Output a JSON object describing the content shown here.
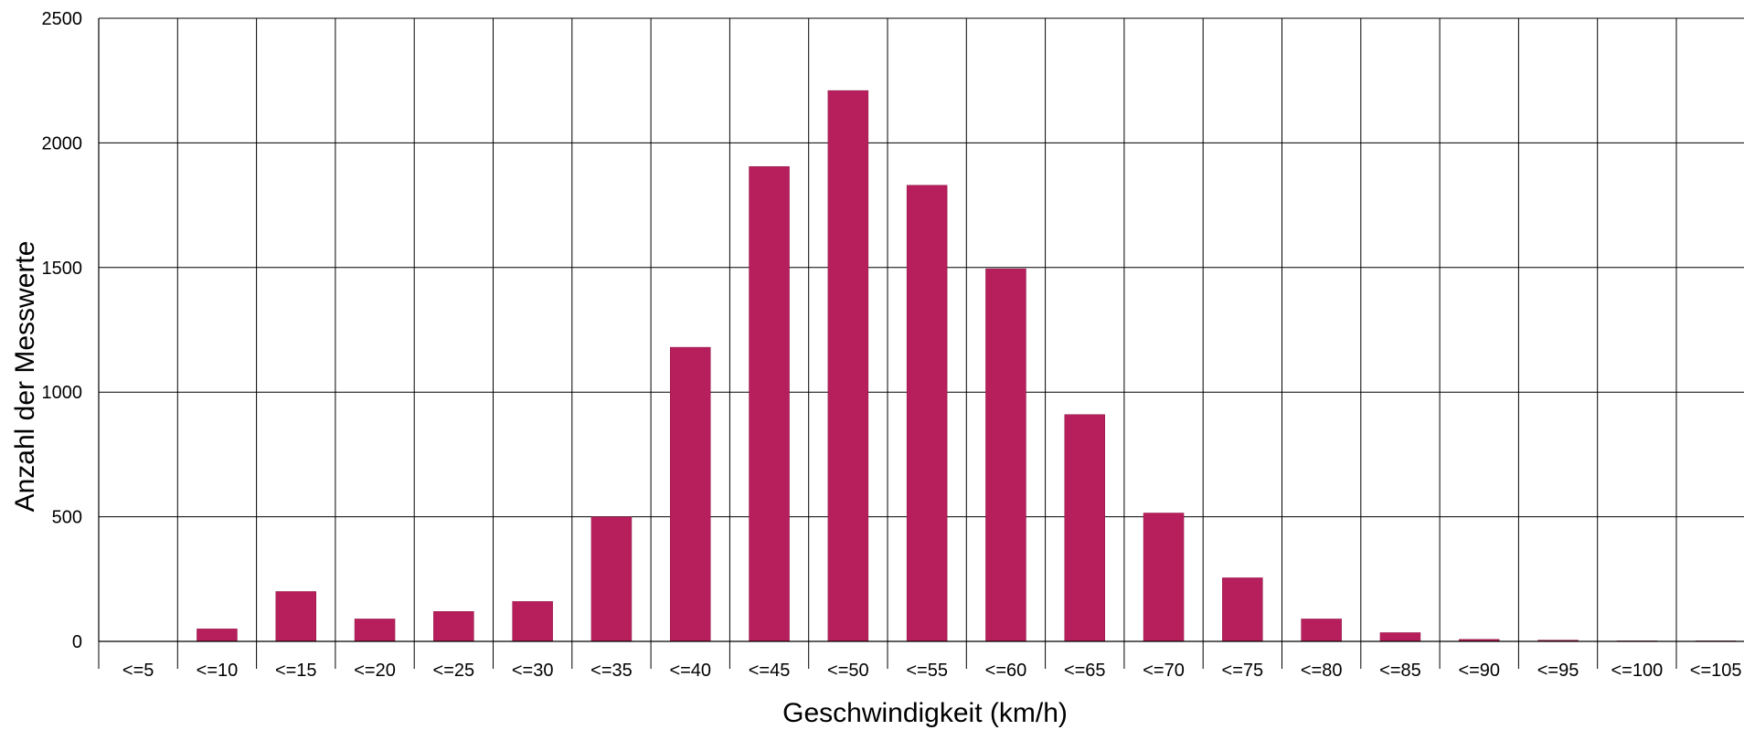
{
  "chart_data": {
    "type": "bar",
    "xlabel": "Geschwindigkeit (km/h)",
    "ylabel": "Anzahl der Messwerte",
    "ylim": [
      0,
      2500
    ],
    "yticks": [
      "0",
      "500",
      "1000",
      "1500",
      "2000",
      "2500"
    ],
    "ytick_values": [
      0,
      500,
      1000,
      1500,
      2000,
      2500
    ],
    "grid": true,
    "categories": [
      "<=5",
      "<=10",
      "<=15",
      "<=20",
      "<=25",
      "<=30",
      "<=35",
      "<=40",
      "<=45",
      "<=50",
      "<=55",
      "<=60",
      "<=65",
      "<=70",
      "<=75",
      "<=80",
      "<=85",
      "<=90",
      "<=95",
      "<=100",
      "<=105"
    ],
    "values": [
      0,
      50,
      200,
      90,
      120,
      160,
      500,
      1180,
      1905,
      2210,
      1830,
      1495,
      910,
      515,
      255,
      90,
      35,
      8,
      5,
      2,
      2
    ],
    "bar_color": "#b71f5c"
  }
}
